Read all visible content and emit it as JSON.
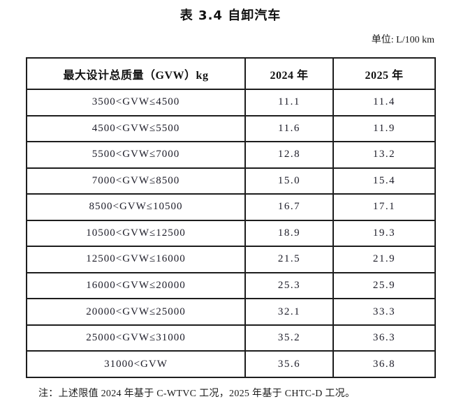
{
  "page": {
    "title": "表 3.4 自卸汽车",
    "unit_label": "单位: L/100 km",
    "note": "注：上述限值 2024 年基于 C-WTVC 工况，2025 年基于 CHTC-D 工况。"
  },
  "table": {
    "columns": [
      "最大设计总质量（GVW）kg",
      "2024 年",
      "2025 年"
    ],
    "rows": [
      {
        "range": "3500<GVW≤4500",
        "y2024": "11.1",
        "y2025": "11.4"
      },
      {
        "range": "4500<GVW≤5500",
        "y2024": "11.6",
        "y2025": "11.9"
      },
      {
        "range": "5500<GVW≤7000",
        "y2024": "12.8",
        "y2025": "13.2"
      },
      {
        "range": "7000<GVW≤8500",
        "y2024": "15.0",
        "y2025": "15.4"
      },
      {
        "range": "8500<GVW≤10500",
        "y2024": "16.7",
        "y2025": "17.1"
      },
      {
        "range": "10500<GVW≤12500",
        "y2024": "18.9",
        "y2025": "19.3"
      },
      {
        "range": "12500<GVW≤16000",
        "y2024": "21.5",
        "y2025": "21.9"
      },
      {
        "range": "16000<GVW≤20000",
        "y2024": "25.3",
        "y2025": "25.9"
      },
      {
        "range": "20000<GVW≤25000",
        "y2024": "32.1",
        "y2025": "33.3"
      },
      {
        "range": "25000<GVW≤31000",
        "y2024": "35.2",
        "y2025": "36.3"
      },
      {
        "range": "31000<GVW",
        "y2024": "35.6",
        "y2025": "36.8"
      }
    ]
  },
  "colors": {
    "border": "#1d1d1d",
    "text": "#1a1a1a",
    "background": "#ffffff"
  }
}
